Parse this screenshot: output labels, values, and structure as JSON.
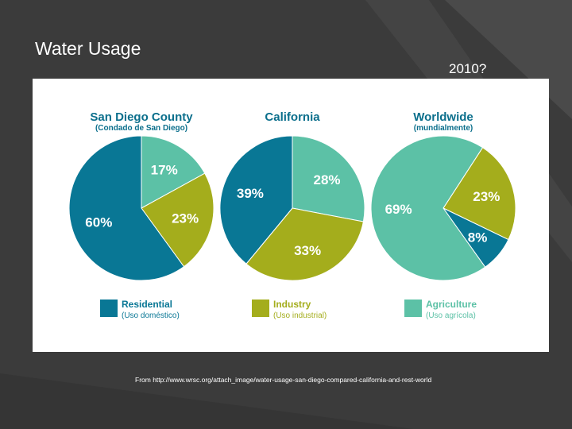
{
  "slide": {
    "title": "Water Usage",
    "subtitle": "2010?",
    "source": "From http://www.wrsc.org/attach_image/water-usage-san-diego-compared-california-and-rest-world"
  },
  "colors": {
    "background": "#3b3b3b",
    "residential": "#097795",
    "industry": "#a4ad1c",
    "agriculture": "#5cc1a6",
    "title_text": "#0b6f8c",
    "label_text": "#ffffff"
  },
  "chart_data": {
    "type": "pie",
    "categories": [
      {
        "key": "residential",
        "label": "Residential",
        "sublabel": "(Uso doméstico)"
      },
      {
        "key": "industry",
        "label": "Industry",
        "sublabel": "(Uso industrial)"
      },
      {
        "key": "agriculture",
        "label": "Agriculture",
        "sublabel": "(Uso agrícola)"
      }
    ],
    "charts": [
      {
        "id": "san-diego",
        "title": "San Diego County",
        "subtitle": "(Condado de San Diego)",
        "slices": [
          {
            "category": "agriculture",
            "value": 17,
            "label": "17%"
          },
          {
            "category": "industry",
            "value": 23,
            "label": "23%"
          },
          {
            "category": "residential",
            "value": 60,
            "label": "60%"
          }
        ]
      },
      {
        "id": "california",
        "title": "California",
        "subtitle": "",
        "slices": [
          {
            "category": "agriculture",
            "value": 28,
            "label": "28%"
          },
          {
            "category": "industry",
            "value": 33,
            "label": "33%"
          },
          {
            "category": "residential",
            "value": 39,
            "label": "39%"
          }
        ]
      },
      {
        "id": "worldwide",
        "title": "Worldwide",
        "subtitle": "(mundialmente)",
        "slices": [
          {
            "category": "industry",
            "value": 23,
            "label": "23%"
          },
          {
            "category": "residential",
            "value": 8,
            "label": "8%"
          },
          {
            "category": "agriculture",
            "value": 69,
            "label": "69%"
          }
        ]
      }
    ]
  }
}
